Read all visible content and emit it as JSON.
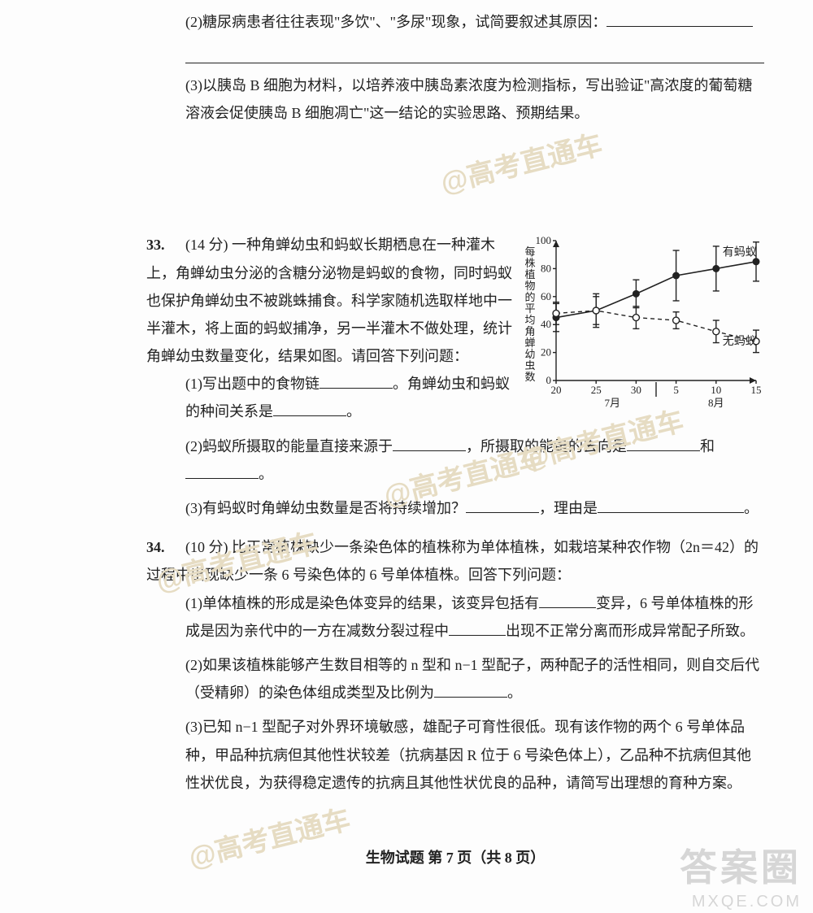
{
  "watermarks": {
    "w1": "@高考直通车",
    "w2": "@高考直通车",
    "w3": "@高考直通车",
    "w4": "@高考直通车",
    "w5": "@高考直通车"
  },
  "q32": {
    "p2": "(2)糖尿病患者往往表现\"多饮\"、\"多尿\"现象，试简要叙述其原因：",
    "p3": "(3)以胰岛 B 细胞为材料，以培养液中胰岛素浓度为检测指标，写出验证\"高浓度的葡萄糖溶液会促使胰岛 B 细胞凋亡\"这一结论的实验思路、预期结果。"
  },
  "q33": {
    "num": "33.",
    "intro": "(14 分) 一种角蝉幼虫和蚂蚁长期栖息在一种灌木上，角蝉幼虫分泌的含糖分泌物是蚂蚁的食物，同时蚂蚁也保护角蝉幼虫不被跳蛛捕食。科学家随机选取样地中一半灌木，将上面的蚂蚁捕净，另一半灌木不做处理，统计角蝉幼虫数量变化，结果如图。请回答下列问题：",
    "p1a": "(1)写出题中的食物链",
    "p1b": "。角蝉幼虫和蚂蚁的种间关系是",
    "p1c": "。",
    "p2a": "(2)蚂蚁所摄取的能量直接来源于",
    "p2b": "，所摄取的能量的去向是",
    "p2c": "和",
    "p2d": "。",
    "p3a": "(3)有蚂蚁时角蝉幼虫数量是否将持续增加？",
    "p3b": "，理由是",
    "p3c": "。"
  },
  "q34": {
    "num": "34.",
    "intro": "(10 分) 比正常植株缺少一条染色体的植株称为单体植株，如栽培某种农作物（2n＝42）的过程中出现缺少一条 6 号染色体的 6 号单体植株。回答下列问题：",
    "p1a": "(1)单体植株的形成是染色体变异的结果，该变异包括有",
    "p1b": "变异，6 号单体植株的形成是因为亲代中的一方在减数分裂过程中",
    "p1c": "出现不正常分离而形成异常配子所致。",
    "p2a": "(2)如果该植株能够产生数目相等的 n 型和 n−1 型配子，两种配子的活性相同，则自交后代（受精卵）的染色体组成类型及比例为",
    "p2b": "。",
    "p3": "(3)已知 n−1 型配子对外界环境敏感，雄配子可育性很低。现有该作物的两个 6 号单体品种，甲品种抗病但其他性状较差（抗病基因 R 位于 6 号染色体上），乙品种不抗病但其他性状优良，为获得稳定遗传的抗病且其他性状优良的品种，请简写出理想的育种方案。"
  },
  "chart": {
    "ylabel": "每株植物的平均角蝉幼虫数",
    "xlabel": "7月|8月",
    "yticks": [
      0,
      20,
      40,
      60,
      80,
      100
    ],
    "xticks": [
      20,
      25,
      30,
      5,
      10,
      15
    ],
    "series_with": {
      "label": "有蚂蚁",
      "x": [
        20,
        25,
        30,
        5,
        10,
        15
      ],
      "y": [
        45,
        50,
        62,
        75,
        80,
        85
      ],
      "err": [
        10,
        12,
        10,
        18,
        16,
        14
      ]
    },
    "series_without": {
      "label": "无蚂蚁",
      "x": [
        20,
        25,
        30,
        5,
        10,
        15
      ],
      "y": [
        48,
        50,
        45,
        43,
        35,
        28
      ],
      "err": [
        8,
        10,
        8,
        6,
        8,
        8
      ]
    },
    "ylim": [
      0,
      100
    ],
    "colors": {
      "axis": "#222222",
      "bg": "#ffffff"
    }
  },
  "footer": "生物试题 第 7 页（共 8 页）",
  "brand": {
    "daan": "答案圈",
    "mxqe": "MXQE.COM"
  }
}
